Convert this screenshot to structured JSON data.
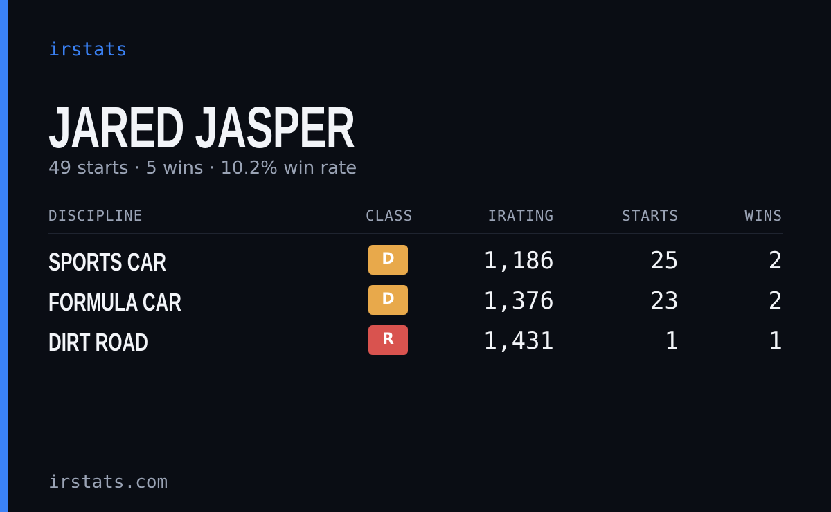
{
  "brand": "irstats",
  "driver": {
    "name": "JARED JASPER",
    "summary": "49 starts · 5 wins · 10.2% win rate"
  },
  "table": {
    "headers": [
      "DISCIPLINE",
      "CLASS",
      "IRATING",
      "STARTS",
      "WINS"
    ],
    "rows": [
      [
        "SPORTS CAR",
        "D",
        "1,186",
        "25",
        "2"
      ],
      [
        "FORMULA CAR",
        "D",
        "1,376",
        "23",
        "2"
      ],
      [
        "DIRT ROAD",
        "R",
        "1,431",
        "1",
        "1"
      ]
    ],
    "class_colors": {
      "D": "#e8a94b",
      "R": "#d9534f"
    }
  },
  "footer": "irstats.com"
}
